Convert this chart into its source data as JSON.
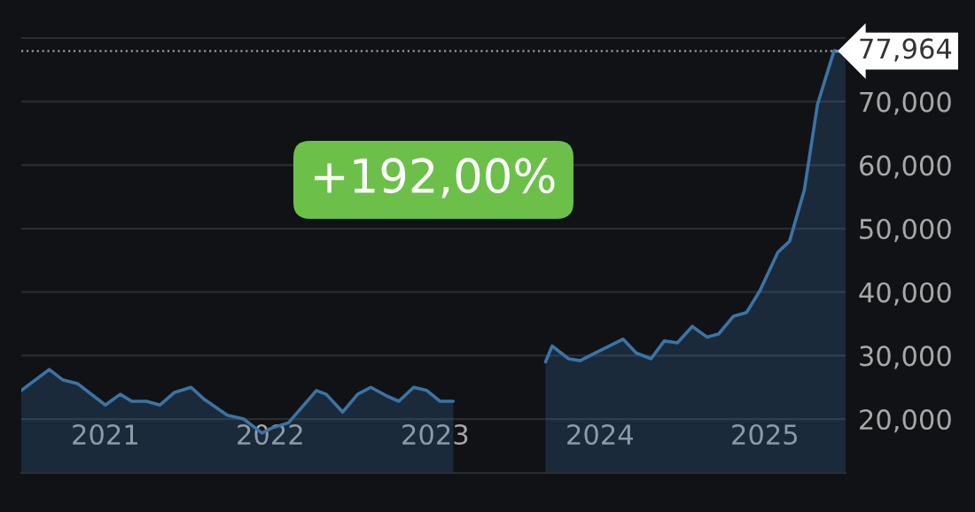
{
  "chart_data": {
    "type": "area",
    "x": [
      2020.49,
      2020.66,
      2020.74,
      2020.83,
      2021.0,
      2021.09,
      2021.16,
      2021.25,
      2021.33,
      2021.42,
      2021.52,
      2021.6,
      2021.74,
      2021.84,
      2021.95,
      2022.01,
      2022.11,
      2022.28,
      2022.34,
      2022.44,
      2022.53,
      2022.61,
      2022.71,
      2022.78,
      2022.87,
      2022.95,
      2023.03,
      2023.11,
      2023.39,
      2023.67,
      2023.71,
      2023.81,
      2023.88,
      2023.97,
      2024.14,
      2024.22,
      2024.31,
      2024.39,
      2024.47,
      2024.56,
      2024.65,
      2024.72,
      2024.81,
      2024.89,
      2024.97,
      2025.08,
      2025.15,
      2025.24,
      2025.32,
      2025.42,
      2025.49
    ],
    "series": [
      {
        "color": "#3b74a6",
        "values": [
          24500,
          27800,
          26200,
          25600,
          22200,
          23900,
          22800,
          22800,
          22200,
          24200,
          25000,
          23100,
          20600,
          20000,
          17800,
          18600,
          19400,
          24500,
          23900,
          21100,
          23900,
          25000,
          23600,
          22800,
          25000,
          24500,
          22800,
          22800,
          null,
          29000,
          31500,
          29500,
          29200,
          30400,
          32600,
          30400,
          29500,
          32300,
          32000,
          34600,
          32900,
          33400,
          36200,
          36800,
          40200,
          46300,
          48000,
          56100,
          69600,
          78000,
          77700
        ]
      }
    ],
    "xlim": [
      2020.49,
      2025.49
    ],
    "xticks": [
      2021,
      2022,
      2023,
      2024,
      2025
    ],
    "ylim": [
      11500,
      86000
    ],
    "yticks": [
      {
        "value": 20000,
        "label": "20,000"
      },
      {
        "value": 30000,
        "label": "30,000"
      },
      {
        "value": 40000,
        "label": "40,000"
      },
      {
        "value": 50000,
        "label": "50,000"
      },
      {
        "value": 60000,
        "label": "60,000"
      },
      {
        "value": 70000,
        "label": "70,000"
      },
      {
        "value": 80000,
        "label": null
      }
    ],
    "grid": "y",
    "ref_lines": [
      {
        "axis": "y",
        "value": 77964,
        "label": "77,964",
        "color": "#9a9a9a",
        "line_style": "dotted"
      }
    ],
    "annotations": [
      "+192,00%"
    ]
  }
}
